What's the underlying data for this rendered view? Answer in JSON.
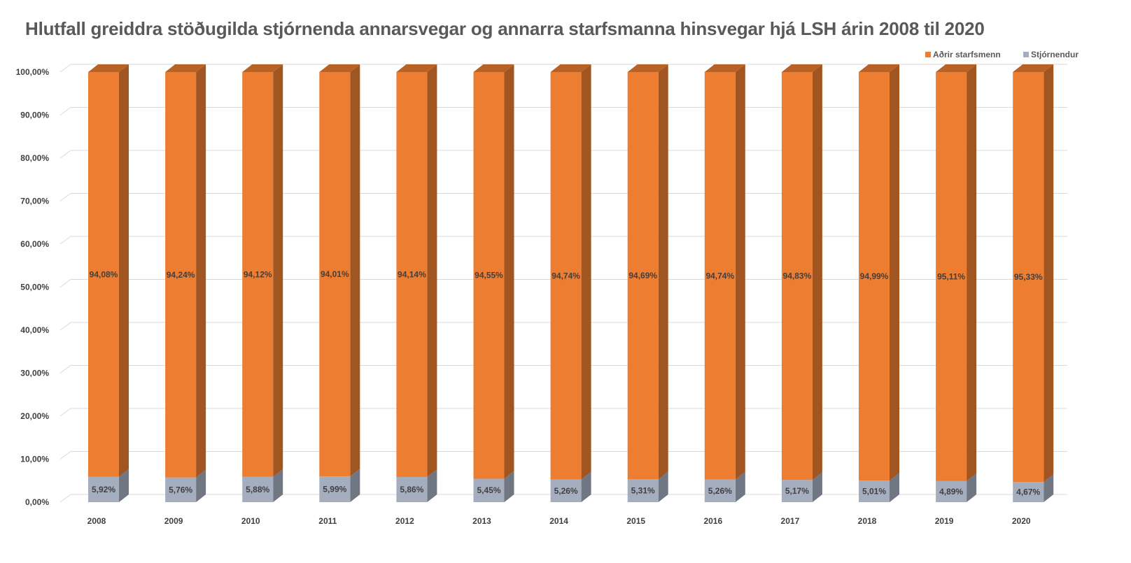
{
  "chart_data": {
    "type": "bar",
    "stacked": true,
    "three_d": true,
    "title": "Hlutfall greiddra stöðugilda stjórnenda annarsvegar og annarra starfsmanna hinsvegar hjá LSH árin 2008 til 2020",
    "categories": [
      "2008",
      "2009",
      "2010",
      "2011",
      "2012",
      "2013",
      "2014",
      "2015",
      "2016",
      "2017",
      "2018",
      "2019",
      "2020"
    ],
    "series": [
      {
        "name": "Stjórnendur",
        "color": "#a5aebf",
        "values": [
          5.92,
          5.76,
          5.88,
          5.99,
          5.86,
          5.45,
          5.26,
          5.31,
          5.26,
          5.17,
          5.01,
          4.89,
          4.67
        ],
        "labels": [
          "5,92%",
          "5,76%",
          "5,88%",
          "5,99%",
          "5,86%",
          "5,45%",
          "5,26%",
          "5,31%",
          "5,26%",
          "5,17%",
          "5,01%",
          "4,89%",
          "4,67%"
        ]
      },
      {
        "name": "Aðrir starfsmenn",
        "color": "#ed7d31",
        "values": [
          94.08,
          94.24,
          94.12,
          94.01,
          94.14,
          94.55,
          94.74,
          94.69,
          94.74,
          94.83,
          94.99,
          95.11,
          95.33
        ],
        "labels": [
          "94,08%",
          "94,24%",
          "94,12%",
          "94,01%",
          "94,14%",
          "94,55%",
          "94,74%",
          "94,69%",
          "94,74%",
          "94,83%",
          "94,99%",
          "95,11%",
          "95,33%"
        ]
      }
    ],
    "y_ticks": [
      0,
      10,
      20,
      30,
      40,
      50,
      60,
      70,
      80,
      90,
      100
    ],
    "y_tick_labels": [
      "0,00%",
      "10,00%",
      "20,00%",
      "30,00%",
      "40,00%",
      "50,00%",
      "60,00%",
      "70,00%",
      "80,00%",
      "90,00%",
      "100,00%"
    ],
    "ylim": [
      0,
      100
    ],
    "xlabel": "",
    "ylabel": "",
    "grid": true,
    "legend": {
      "position": "top-right",
      "order": [
        "Aðrir starfsmenn",
        "Stjórnendur"
      ]
    }
  }
}
